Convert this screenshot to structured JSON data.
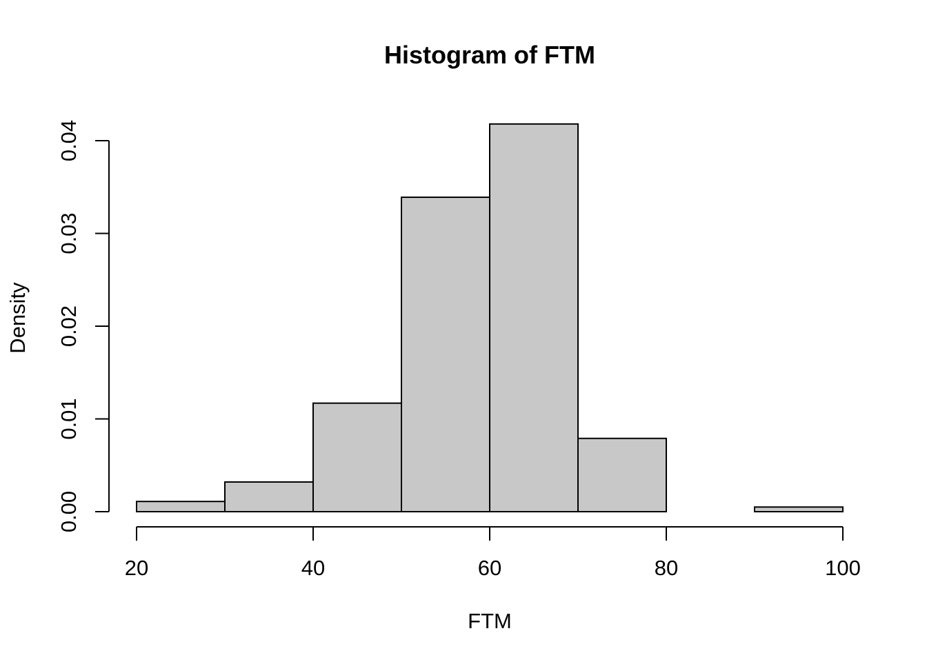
{
  "chart_data": {
    "type": "bar",
    "title": "Histogram of FTM",
    "xlabel": "FTM",
    "ylabel": "Density",
    "bin_edges": [
      20,
      30,
      40,
      50,
      60,
      70,
      80,
      90,
      100
    ],
    "values": [
      0.0011,
      0.0032,
      0.0117,
      0.0339,
      0.0418,
      0.0079,
      0.0,
      0.0005
    ],
    "xlim": [
      20,
      100
    ],
    "ylim": [
      0,
      0.04
    ],
    "x_ticks": [
      20,
      40,
      60,
      80,
      100
    ],
    "x_tick_labels": [
      "20",
      "40",
      "60",
      "80",
      "100"
    ],
    "y_ticks": [
      0,
      0.01,
      0.02,
      0.03,
      0.04
    ],
    "y_tick_labels": [
      "0.00",
      "0.01",
      "0.02",
      "0.03",
      "0.04"
    ],
    "grid": false,
    "bar_color": "#c8c8c8",
    "edge_color": "#000000"
  }
}
